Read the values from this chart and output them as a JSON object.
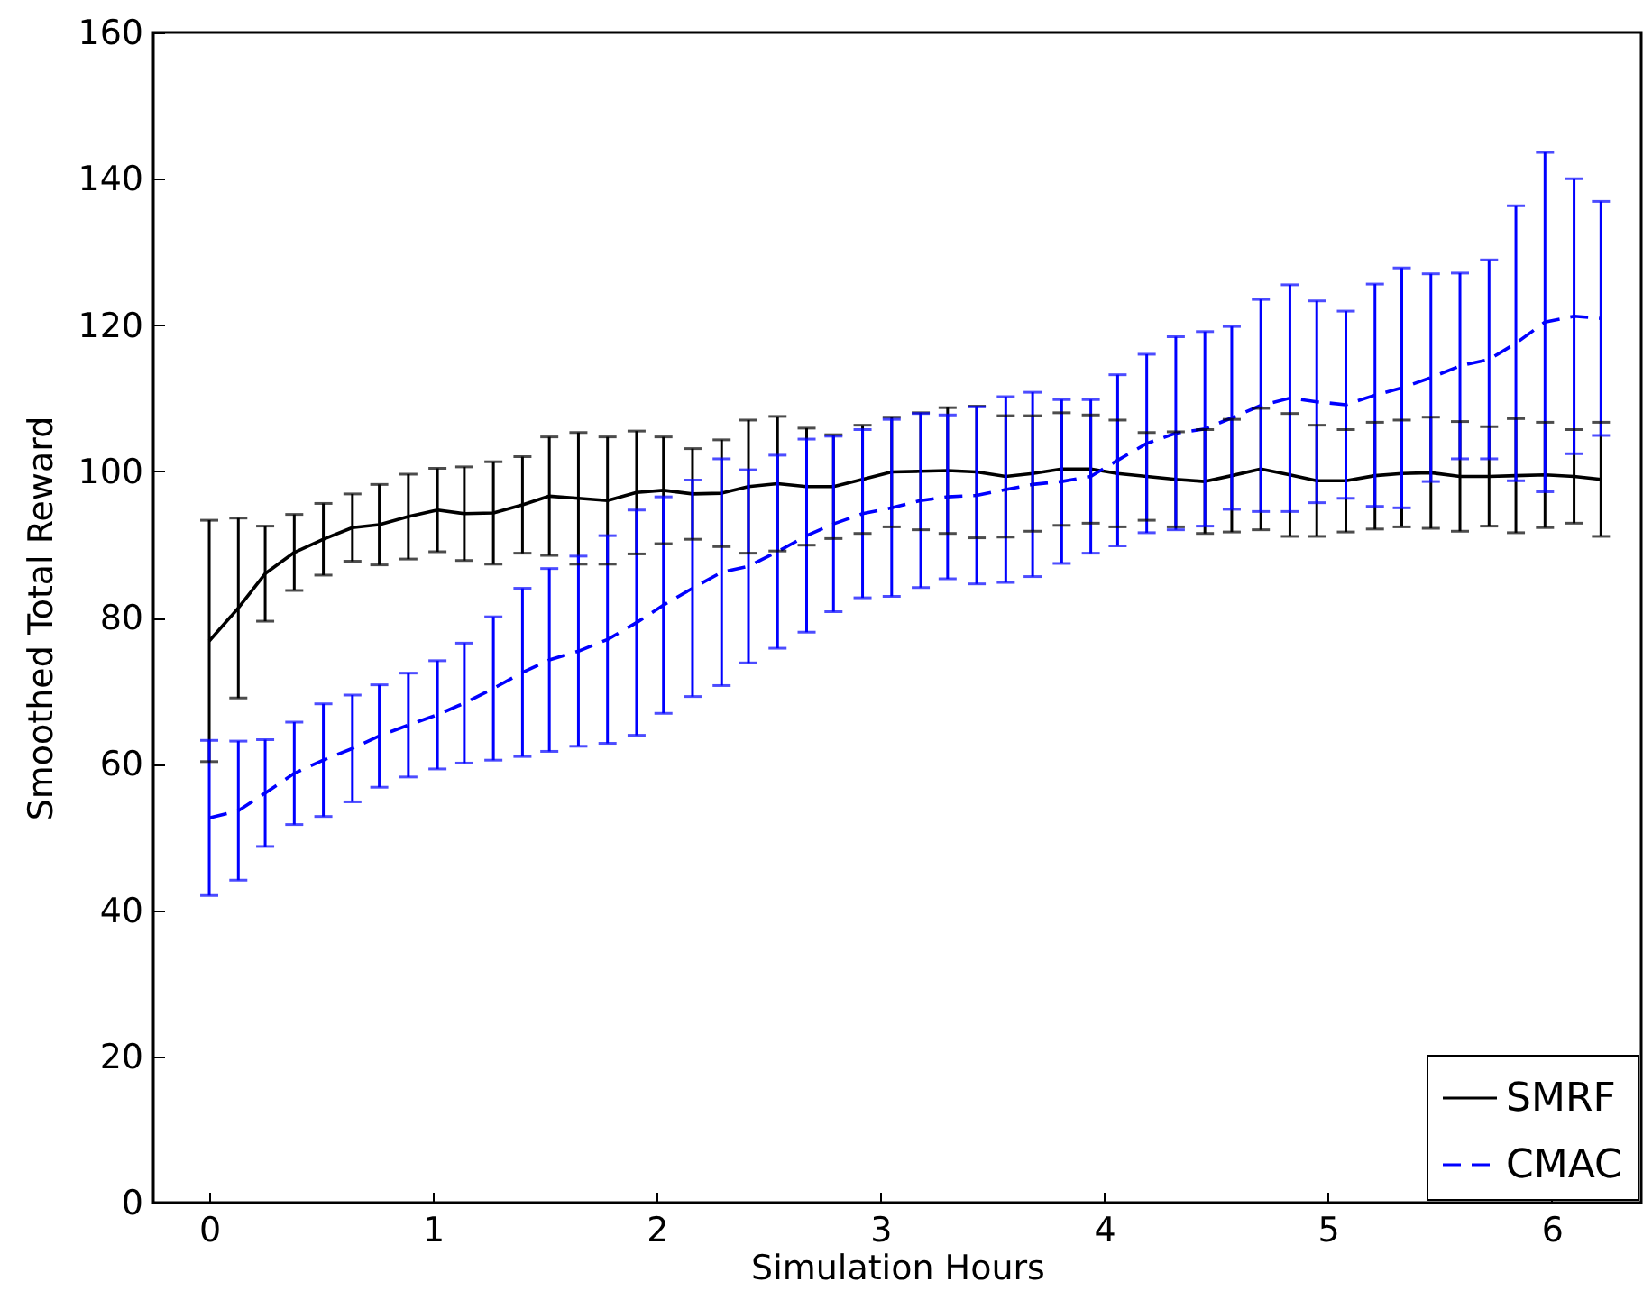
{
  "chart_data": {
    "type": "line",
    "xlabel": "Simulation Hours",
    "ylabel": "Smoothed Total Reward",
    "x": [
      0,
      0.13,
      0.25,
      0.38,
      0.51,
      0.64,
      0.76,
      0.89,
      1.02,
      1.14,
      1.27,
      1.4,
      1.52,
      1.65,
      1.78,
      1.91,
      2.03,
      2.16,
      2.29,
      2.41,
      2.54,
      2.67,
      2.79,
      2.92,
      3.05,
      3.18,
      3.3,
      3.43,
      3.56,
      3.68,
      3.81,
      3.94,
      4.06,
      4.19,
      4.32,
      4.45,
      4.57,
      4.7,
      4.83,
      4.95,
      5.08,
      5.21,
      5.33,
      5.46,
      5.59,
      5.72,
      5.84,
      5.97,
      6.1,
      6.22
    ],
    "series": [
      {
        "name": "SMRF",
        "color": "#000000",
        "line_style": "solid",
        "values": [
          76.8,
          81.3,
          86,
          88.9,
          90.7,
          92.3,
          92.7,
          93.8,
          94.7,
          94.2,
          94.3,
          95.4,
          96.6,
          96.3,
          96,
          97.1,
          97.4,
          96.9,
          97,
          97.9,
          98.3,
          97.9,
          97.9,
          98.9,
          99.9,
          100,
          100.1,
          99.9,
          99.3,
          99.7,
          100.3,
          100.3,
          99.7,
          99.3,
          98.9,
          98.6,
          99.4,
          100.3,
          99.5,
          98.7,
          98.7,
          99.4,
          99.7,
          99.8,
          99.3,
          99.3,
          99.4,
          99.5,
          99.3,
          98.9
        ],
        "errors": [
          16.5,
          12.3,
          6.5,
          5.2,
          4.9,
          4.6,
          5.5,
          5.8,
          5.7,
          6.4,
          7,
          6.6,
          8.1,
          9,
          8.7,
          8.4,
          7.3,
          6.2,
          7.3,
          9.1,
          9.2,
          8,
          7.1,
          7.4,
          7.5,
          8,
          8.6,
          9,
          8.3,
          7.9,
          7.7,
          7.4,
          7.3,
          6,
          6.5,
          7.1,
          7.7,
          8.3,
          8.4,
          7.6,
          7,
          7.3,
          7.3,
          7.6,
          7.5,
          6.8,
          7.8,
          7.2,
          6.4,
          7.8
        ]
      },
      {
        "name": "CMAC",
        "color": "#0000ff",
        "line_style": "dashed",
        "values": [
          52.6,
          53.6,
          56,
          58.7,
          60.5,
          62.1,
          63.8,
          65.3,
          66.7,
          68.3,
          70.3,
          72.5,
          74.2,
          75.4,
          77,
          79.3,
          81.7,
          84,
          86.2,
          87,
          89,
          91.2,
          92.8,
          94.2,
          95,
          96,
          96.5,
          96.7,
          97.5,
          98.2,
          98.6,
          99.3,
          101.5,
          103.8,
          105.2,
          105.8,
          107.3,
          109,
          110,
          109.5,
          109.1,
          110.4,
          111.4,
          112.8,
          114.4,
          115.3,
          117.5,
          120.4,
          121.2,
          120.9
        ],
        "errors": [
          10.6,
          9.5,
          7.3,
          7,
          7.7,
          7.3,
          7,
          7.1,
          7.4,
          8.2,
          9.8,
          11.5,
          12.5,
          13,
          14.2,
          15.4,
          14.8,
          14.8,
          15.5,
          13.2,
          13.2,
          13.2,
          12,
          11.5,
          12.1,
          11.9,
          11.2,
          12.1,
          12.7,
          12.6,
          11.2,
          10.5,
          11.7,
          12.2,
          13.2,
          13.3,
          12.5,
          14.5,
          15.5,
          13.8,
          12.8,
          15.2,
          16.4,
          14.2,
          12.7,
          13.6,
          18.8,
          23.2,
          18.8,
          16
        ]
      }
    ],
    "xlim": [
      -0.25,
      6.4
    ],
    "xticks": [
      0,
      1,
      2,
      3,
      4,
      5,
      6
    ],
    "ylim": [
      0,
      160
    ],
    "yticks": [
      0,
      20,
      40,
      60,
      80,
      100,
      120,
      140,
      160
    ],
    "legend": "bottom right",
    "grid": false,
    "marker": "none"
  }
}
